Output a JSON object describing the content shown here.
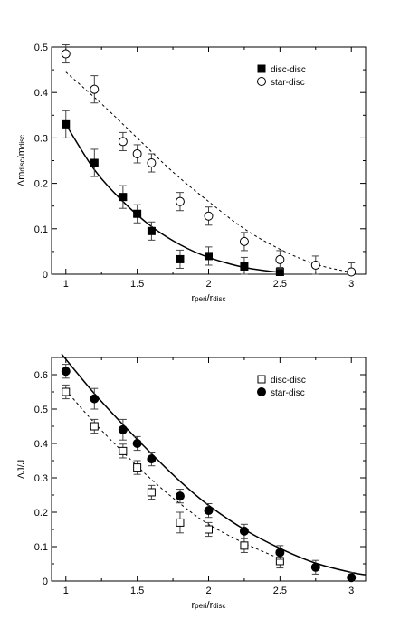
{
  "chart_data": [
    {
      "type": "scatter",
      "title": "",
      "xlabel": {
        "main": "r",
        "sub1": "peri",
        "mid": "/r",
        "sub2": "disc"
      },
      "ylabel": {
        "main": "Δm",
        "sub1": "disc",
        "mid": "/m",
        "sub2": "disc"
      },
      "xlim": [
        0.9,
        3.1
      ],
      "ylim": [
        0,
        0.5
      ],
      "xticks": [
        1,
        1.5,
        2,
        2.5,
        3
      ],
      "xtick_labels": [
        "1",
        "1.5",
        "2",
        "2.5",
        "3"
      ],
      "yticks": [
        0,
        0.1,
        0.2,
        0.3,
        0.4,
        0.5
      ],
      "ytick_labels": [
        "0",
        "0.1",
        "0.2",
        "0.3",
        "0.4",
        "0.5"
      ],
      "legend_position": "top-right",
      "series": [
        {
          "name": "disc-disc",
          "marker": "filled-square",
          "points": [
            {
              "x": 1.0,
              "y": 0.33,
              "err": 0.03
            },
            {
              "x": 1.2,
              "y": 0.245,
              "err": 0.03
            },
            {
              "x": 1.4,
              "y": 0.17,
              "err": 0.025
            },
            {
              "x": 1.5,
              "y": 0.133,
              "err": 0.02
            },
            {
              "x": 1.6,
              "y": 0.095,
              "err": 0.02
            },
            {
              "x": 1.8,
              "y": 0.033,
              "err": 0.02
            },
            {
              "x": 2.0,
              "y": 0.04,
              "err": 0.02
            },
            {
              "x": 2.25,
              "y": 0.017,
              "err": 0.02
            },
            {
              "x": 2.5,
              "y": 0.005,
              "err": 0.01
            }
          ],
          "fit_curve": {
            "style": "solid",
            "points": [
              [
                1.0,
                0.33
              ],
              [
                1.2,
                0.23
              ],
              [
                1.4,
                0.16
              ],
              [
                1.6,
                0.105
              ],
              [
                1.8,
                0.065
              ],
              [
                2.0,
                0.037
              ],
              [
                2.25,
                0.015
              ],
              [
                2.5,
                0.004
              ]
            ]
          }
        },
        {
          "name": "star-disc",
          "marker": "open-circle",
          "points": [
            {
              "x": 1.0,
              "y": 0.485,
              "err": 0.02
            },
            {
              "x": 1.2,
              "y": 0.407,
              "err": 0.03
            },
            {
              "x": 1.4,
              "y": 0.292,
              "err": 0.02
            },
            {
              "x": 1.5,
              "y": 0.265,
              "err": 0.02
            },
            {
              "x": 1.6,
              "y": 0.245,
              "err": 0.02
            },
            {
              "x": 1.8,
              "y": 0.16,
              "err": 0.02
            },
            {
              "x": 2.0,
              "y": 0.128,
              "err": 0.02
            },
            {
              "x": 2.25,
              "y": 0.072,
              "err": 0.02
            },
            {
              "x": 2.5,
              "y": 0.032,
              "err": 0.02
            },
            {
              "x": 2.75,
              "y": 0.02,
              "err": 0.02
            },
            {
              "x": 3.0,
              "y": 0.005,
              "err": 0.02
            }
          ],
          "fit_curve": {
            "style": "dashed",
            "points": [
              [
                1.0,
                0.445
              ],
              [
                1.25,
                0.375
              ],
              [
                1.5,
                0.3
              ],
              [
                1.75,
                0.225
              ],
              [
                2.0,
                0.16
              ],
              [
                2.25,
                0.1
              ],
              [
                2.5,
                0.055
              ],
              [
                2.75,
                0.022
              ],
              [
                3.0,
                0.004
              ]
            ]
          }
        }
      ]
    },
    {
      "type": "scatter",
      "title": "",
      "xlabel": {
        "main": "r",
        "sub1": "peri",
        "mid": "/r",
        "sub2": "disc"
      },
      "ylabel": {
        "main": "ΔJ/J"
      },
      "xlim": [
        0.9,
        3.1
      ],
      "ylim": [
        0,
        0.65
      ],
      "xticks": [
        1,
        1.5,
        2,
        2.5,
        3
      ],
      "xtick_labels": [
        "1",
        "1.5",
        "2",
        "2.5",
        "3"
      ],
      "yticks": [
        0,
        0.1,
        0.2,
        0.3,
        0.4,
        0.5,
        0.6
      ],
      "ytick_labels": [
        "0",
        "0.1",
        "0.2",
        "0.3",
        "0.4",
        "0.5",
        "0.6"
      ],
      "legend_position": "top-right",
      "series": [
        {
          "name": "disc-disc",
          "marker": "open-square",
          "points": [
            {
              "x": 1.0,
              "y": 0.55,
              "err": 0.02
            },
            {
              "x": 1.2,
              "y": 0.45,
              "err": 0.02
            },
            {
              "x": 1.4,
              "y": 0.378,
              "err": 0.02
            },
            {
              "x": 1.5,
              "y": 0.33,
              "err": 0.02
            },
            {
              "x": 1.6,
              "y": 0.258,
              "err": 0.02
            },
            {
              "x": 1.8,
              "y": 0.17,
              "err": 0.03
            },
            {
              "x": 2.0,
              "y": 0.15,
              "err": 0.02
            },
            {
              "x": 2.25,
              "y": 0.103,
              "err": 0.02
            },
            {
              "x": 2.5,
              "y": 0.058,
              "err": 0.02
            }
          ],
          "fit_curve": {
            "style": "dashed",
            "points": [
              [
                1.0,
                0.555
              ],
              [
                1.2,
                0.46
              ],
              [
                1.4,
                0.375
              ],
              [
                1.6,
                0.295
              ],
              [
                1.8,
                0.225
              ],
              [
                2.0,
                0.165
              ],
              [
                2.25,
                0.11
              ],
              [
                2.5,
                0.065
              ]
            ]
          }
        },
        {
          "name": "star-disc",
          "marker": "filled-circle",
          "points": [
            {
              "x": 1.0,
              "y": 0.61,
              "err": 0.02
            },
            {
              "x": 1.2,
              "y": 0.53,
              "err": 0.03
            },
            {
              "x": 1.4,
              "y": 0.44,
              "err": 0.03
            },
            {
              "x": 1.5,
              "y": 0.4,
              "err": 0.02
            },
            {
              "x": 1.6,
              "y": 0.355,
              "err": 0.02
            },
            {
              "x": 1.8,
              "y": 0.247,
              "err": 0.02
            },
            {
              "x": 2.0,
              "y": 0.205,
              "err": 0.02
            },
            {
              "x": 2.25,
              "y": 0.145,
              "err": 0.02
            },
            {
              "x": 2.5,
              "y": 0.083,
              "err": 0.02
            },
            {
              "x": 2.75,
              "y": 0.04,
              "err": 0.02
            },
            {
              "x": 3.0,
              "y": 0.01,
              "err": 0.015
            }
          ],
          "fit_curve": {
            "style": "solid",
            "points": [
              [
                0.97,
                0.66
              ],
              [
                1.2,
                0.545
              ],
              [
                1.4,
                0.455
              ],
              [
                1.6,
                0.37
              ],
              [
                1.8,
                0.29
              ],
              [
                2.0,
                0.22
              ],
              [
                2.25,
                0.15
              ],
              [
                2.5,
                0.095
              ],
              [
                2.75,
                0.052
              ],
              [
                3.0,
                0.025
              ],
              [
                3.1,
                0.018
              ]
            ]
          }
        }
      ]
    }
  ]
}
